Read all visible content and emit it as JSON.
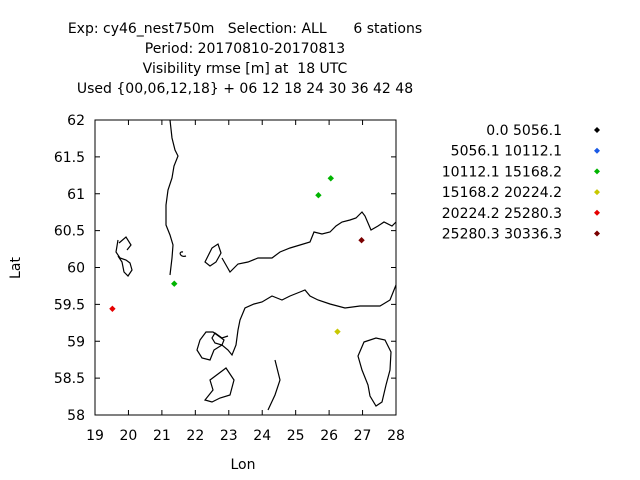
{
  "chart_data": {
    "type": "scatter",
    "title_lines": [
      "Exp: cy46_nest750m   Selection: ALL      6 stations",
      "Period: 20170810-20170813",
      "Visibility rmse [m] at  18 UTC",
      "Used {00,06,12,18} + 06 12 18 24 30 36 42 48"
    ],
    "xlabel": "Lon",
    "ylabel": "Lat",
    "xlim": [
      19,
      28
    ],
    "ylim": [
      58,
      62
    ],
    "x_ticks": [
      "19",
      "20",
      "21",
      "22",
      "23",
      "24",
      "25",
      "26",
      "27",
      "28"
    ],
    "y_ticks": [
      "58",
      "58.5",
      "59",
      "59.5",
      "60",
      "60.5",
      "61",
      "61.5",
      "62"
    ],
    "legend_position": "right",
    "classes": [
      {
        "label": "0.0 5056.1",
        "color": "#000000"
      },
      {
        "label": "5056.1  10112.1",
        "color": "#1a5ae6"
      },
      {
        "label": "10112.1 15168.2",
        "color": "#00b400"
      },
      {
        "label": "15168.2 20224.2",
        "color": "#c8c800"
      },
      {
        "label": "20224.2 25280.3",
        "color": "#e60000"
      },
      {
        "label": "25280.3 30336.3",
        "color": "#7a0000"
      }
    ],
    "points": [
      {
        "lon": 26.05,
        "lat": 61.21,
        "class": 2
      },
      {
        "lon": 25.68,
        "lat": 60.98,
        "class": 2
      },
      {
        "lon": 21.37,
        "lat": 59.78,
        "class": 2
      },
      {
        "lon": 26.25,
        "lat": 59.13,
        "class": 3
      },
      {
        "lon": 19.52,
        "lat": 59.44,
        "class": 4
      },
      {
        "lon": 26.97,
        "lat": 60.37,
        "class": 5
      }
    ]
  }
}
